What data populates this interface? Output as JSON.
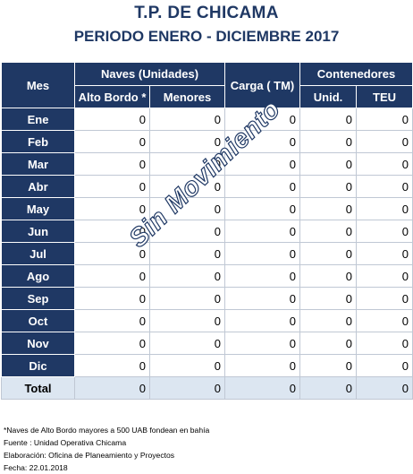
{
  "title": "T.P. DE CHICAMA",
  "subtitle": "PERIODO ENERO - DICIEMBRE 2017",
  "headers": {
    "mes": "Mes",
    "naves": "Naves (Unidades)",
    "alto_bordo": "Alto Bordo *",
    "menores": "Menores",
    "carga": "Carga ( TM)",
    "contenedores": "Contenedores",
    "unid": "Unid.",
    "teu": "TEU"
  },
  "rows": [
    {
      "mes": "Ene",
      "alto_bordo": "0",
      "menores": "0",
      "carga": "0",
      "unid": "0",
      "teu": "0"
    },
    {
      "mes": "Feb",
      "alto_bordo": "0",
      "menores": "0",
      "carga": "0",
      "unid": "0",
      "teu": "0"
    },
    {
      "mes": "Mar",
      "alto_bordo": "0",
      "menores": "0",
      "carga": "0",
      "unid": "0",
      "teu": "0"
    },
    {
      "mes": "Abr",
      "alto_bordo": "0",
      "menores": "0",
      "carga": "0",
      "unid": "0",
      "teu": "0"
    },
    {
      "mes": "May",
      "alto_bordo": "0",
      "menores": "0",
      "carga": "0",
      "unid": "0",
      "teu": "0"
    },
    {
      "mes": "Jun",
      "alto_bordo": "0",
      "menores": "0",
      "carga": "0",
      "unid": "0",
      "teu": "0"
    },
    {
      "mes": "Jul",
      "alto_bordo": "0",
      "menores": "0",
      "carga": "0",
      "unid": "0",
      "teu": "0"
    },
    {
      "mes": "Ago",
      "alto_bordo": "0",
      "menores": "0",
      "carga": "0",
      "unid": "0",
      "teu": "0"
    },
    {
      "mes": "Sep",
      "alto_bordo": "0",
      "menores": "0",
      "carga": "0",
      "unid": "0",
      "teu": "0"
    },
    {
      "mes": "Oct",
      "alto_bordo": "0",
      "menores": "0",
      "carga": "0",
      "unid": "0",
      "teu": "0"
    },
    {
      "mes": "Nov",
      "alto_bordo": "0",
      "menores": "0",
      "carga": "0",
      "unid": "0",
      "teu": "0"
    },
    {
      "mes": "Dic",
      "alto_bordo": "0",
      "menores": "0",
      "carga": "0",
      "unid": "0",
      "teu": "0"
    }
  ],
  "total": {
    "mes": "Total",
    "alto_bordo": "0",
    "menores": "0",
    "carga": "0",
    "unid": "0",
    "teu": "0"
  },
  "watermark": "Sin Movimiento",
  "notes": [
    "*Naves de Alto Bordo mayores a 500 UAB fondean en bahía",
    "Fuente : Unidad Operativa Chicama",
    "Elaboración: Oficina de Planeamiento y Proyectos",
    "Fecha: 22.01.2018"
  ],
  "colors": {
    "header_bg": "#1f3864",
    "total_bg": "#dce6f1",
    "title_color": "#1f3864"
  }
}
